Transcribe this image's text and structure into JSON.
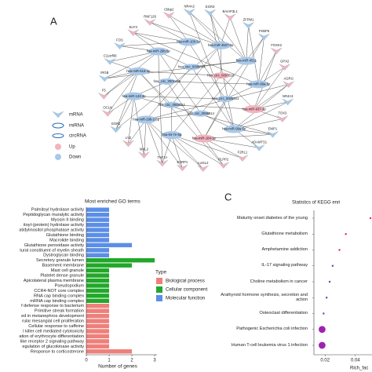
{
  "network": {
    "label": "A",
    "legend": {
      "mrna": "mRNA",
      "mirna": "miRNA",
      "circrna": "circRNA",
      "up": "Up",
      "down": "Down"
    },
    "up_color": "#f3b3bf",
    "down_color": "#a9c9ea",
    "nodes": {
      "mrna": [
        {
          "label": "EGR3",
          "color": "#a9c9ea"
        },
        {
          "label": "BAIAP3L1",
          "color": "#f3b3bf"
        },
        {
          "label": "ZFPM1",
          "color": "#a9c9ea"
        },
        {
          "label": "FKBP5",
          "color": "#a9c9ea"
        },
        {
          "label": "FOXK2",
          "color": "#f3b3bf"
        },
        {
          "label": "GPX2",
          "color": "#f3b3bf"
        },
        {
          "label": "AGRG",
          "color": "#f3b3bf"
        },
        {
          "label": "NR4A3",
          "color": "#a9c9ea"
        },
        {
          "label": "TOX3",
          "color": "#f3b3bf"
        },
        {
          "label": "EMP1",
          "color": "#a9c9ea"
        },
        {
          "label": "ADAMTS1",
          "color": "#a9c9ea"
        },
        {
          "label": "F2RL1",
          "color": "#f3b3bf"
        },
        {
          "label": "PLPP2",
          "color": "#f3b3bf"
        },
        {
          "label": "LUGL2",
          "color": "#f3b3bf"
        },
        {
          "label": "ESRP1",
          "color": "#f3b3bf"
        },
        {
          "label": "TAF1A",
          "color": "#f3b3bf"
        },
        {
          "label": "MAL2",
          "color": "#f3b3bf"
        },
        {
          "label": "LYZ",
          "color": "#f3b3bf"
        },
        {
          "label": "EGR1",
          "color": "#a9c9ea"
        },
        {
          "label": "OCLN",
          "color": "#f3b3bf"
        },
        {
          "label": "F5",
          "color": "#f3b3bf"
        },
        {
          "label": "IRGB",
          "color": "#a9c9ea"
        },
        {
          "label": "C11orf96",
          "color": "#a9c9ea"
        },
        {
          "label": "FOS",
          "color": "#a9c9ea"
        },
        {
          "label": "ELF3",
          "color": "#f3b3bf"
        },
        {
          "label": "RNF128",
          "color": "#f3b3bf"
        },
        {
          "label": "Cbbp2",
          "color": "#f3b3bf"
        },
        {
          "label": "NR4A2",
          "color": "#a9c9ea"
        }
      ],
      "mirna": [
        {
          "label": "hsa-miR-4507-5p",
          "color": "#a9c9ea"
        },
        {
          "label": "hsa-miR-4511",
          "color": "#a9c9ea"
        },
        {
          "label": "hsa-miR-99a-5p",
          "color": "#a9c9ea"
        },
        {
          "label": "hsa-miR-937-3p",
          "color": "#f3b3bf"
        },
        {
          "label": "hsa-miR-99a-5p",
          "color": "#a9c9ea"
        },
        {
          "label": "hsa-miR-184-3p",
          "color": "#f3b3bf"
        },
        {
          "label": "hsa-let-7e-5p",
          "color": "#a9c9ea"
        },
        {
          "label": "hsa-miR-29b-2-5p",
          "color": "#a9c9ea"
        },
        {
          "label": "hsa-miR-143-3p",
          "color": "#a9c9ea"
        },
        {
          "label": "hsa-miR-615-3p",
          "color": "#a9c9ea"
        },
        {
          "label": "hsa-miR-29b-5p",
          "color": "#a9c9ea"
        },
        {
          "label": "hsa-miR-100-5p",
          "color": "#a9c9ea"
        }
      ],
      "circrna": [
        {
          "label": "hsa_circ_0007518",
          "color": "#f3b3bf"
        },
        {
          "label": "hsa_circ_0005941",
          "color": "#a9c9ea"
        },
        {
          "label": "hsa_circ_0006814",
          "color": "#a9c9ea"
        },
        {
          "label": "hsa_circ_0008052",
          "color": "#a9c9ea"
        },
        {
          "label": "hsa_circ_0001445",
          "color": "#a9c9ea"
        },
        {
          "label": "hsa_circ_0008043",
          "color": "#a9c9ea"
        }
      ]
    }
  },
  "chart_data": [
    {
      "type": "bar",
      "label": "B",
      "title": "Most enriched GO terms",
      "xlabel": "Number of genes",
      "xlim": [
        0,
        3.1
      ],
      "xticks": [
        0,
        1,
        2,
        3
      ],
      "legend_title": "Type",
      "series": [
        {
          "name": "Molecular function",
          "color": "#5b8ee6",
          "categories": [
            "Palmitoyl hydrolase activity",
            "Peptidoglycan muralytic activity",
            "Myosin II binding",
            "itoyl-(protein) hydrolase activity",
            "atidylinositol phosphatase activity",
            "Glutathione binding",
            "Macrolide binding",
            "Glutathione peroxidase activity",
            "tural constituent of myelin sheath",
            "Dystroglycan binding"
          ],
          "values": [
            1,
            1,
            1,
            1,
            1,
            1,
            1,
            2,
            1,
            1
          ]
        },
        {
          "name": "Cellular component",
          "color": "#22a82a",
          "categories": [
            "Secretory granule lumen",
            "Basement membrane",
            "Mast cell granule",
            "Platelet dense granule",
            "Apicolateral plasma membrane",
            "Pseudopodium",
            "CCR4-NOT core complex",
            "RNA cap binding complex",
            "mRNA cap binding complex"
          ],
          "values": [
            3,
            2,
            1,
            1,
            1,
            1,
            1,
            1,
            1
          ]
        },
        {
          "name": "Biological process",
          "color": "#ef7f7a",
          "categories": [
            "f defense response to bacterium",
            "Primitive streak formation",
            "ed in metanephros development",
            "rular mesangial cell proliferation",
            "Cellular response to caffeine",
            "l killer cell mediated cytotoxicity",
            "ation of erythrocyte differentiation",
            "like receptor 2 signaling pathway",
            "egulation of glucokinase activity",
            "Response to corticosterone"
          ],
          "values": [
            1,
            1,
            1,
            1,
            1,
            1,
            1,
            1,
            1,
            2
          ]
        }
      ]
    },
    {
      "type": "scatter",
      "label": "C",
      "title": "Statistics of KEGG enri",
      "xlabel": "Rich_fac",
      "categories": [
        "Maturity onset diabetes of the young",
        "Glutathione metabolism",
        "Amphetamine addiction",
        "IL-17 signaling pathway",
        "Choline metabolism in cancer",
        "Arathyroid hormone synthesis, secretion and action",
        "Osteoclast differentiation",
        "Pathogenic Escherichia coli infection",
        "Human T-cell leukemia virus 1 infection"
      ],
      "values": [
        0.05,
        0.0337,
        0.0295,
        0.025,
        0.023,
        0.021,
        0.019,
        0.018,
        0.018
      ],
      "sizes": [
        1,
        1,
        1,
        1,
        1,
        1,
        1,
        3,
        3
      ],
      "colors": [
        "#e0303a",
        "#e0303a",
        "#e0303a",
        "#3a50c8",
        "#3a50c8",
        "#3a50c8",
        "#3a50c8",
        "#a020b0",
        "#a020b0"
      ],
      "xlim": [
        0.0126,
        0.051
      ],
      "xticks": [
        0.02,
        0.04
      ]
    }
  ]
}
